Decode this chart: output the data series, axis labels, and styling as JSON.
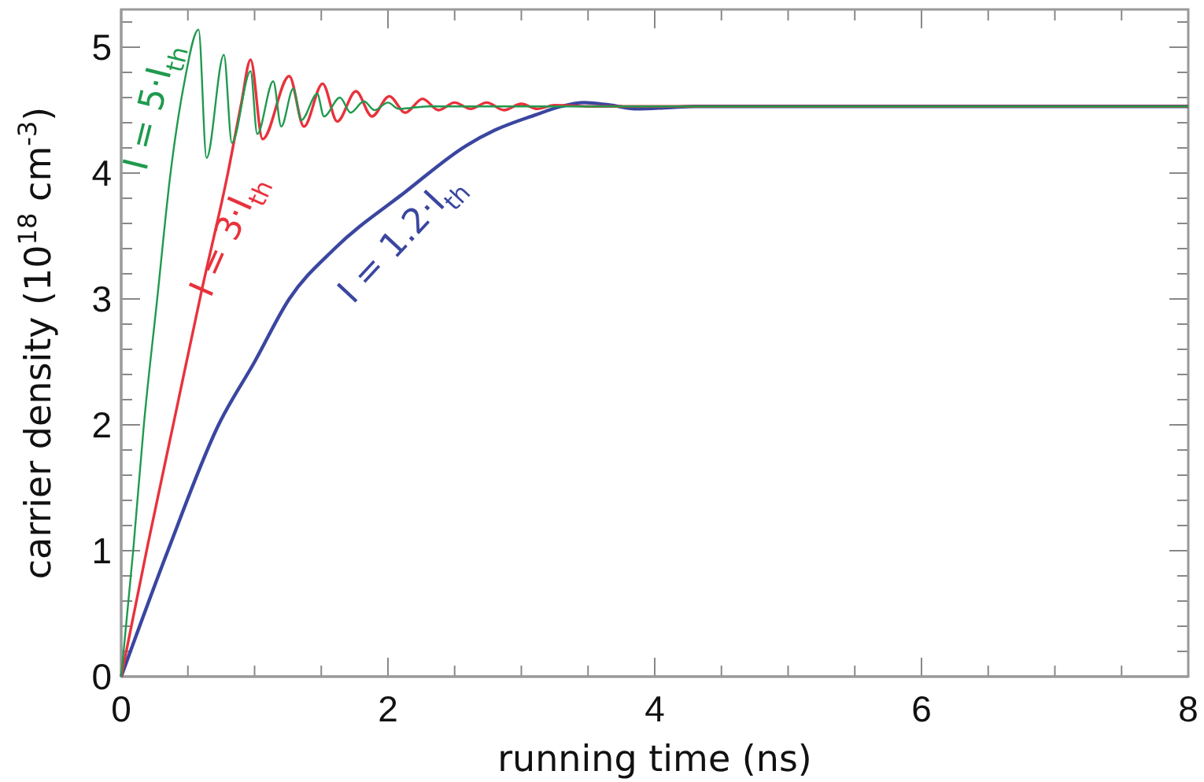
{
  "chart_data": {
    "type": "line",
    "xlabel": "running time (ns)",
    "ylabel": "carrier density (10$^{18}$ cm$^{-3}$)",
    "xlim": [
      0,
      8
    ],
    "ylim": [
      0,
      5.3
    ],
    "xticks": [
      0,
      {
        "value": 0.5,
        "label": null
      },
      {
        "value": 1,
        "label": null
      },
      {
        "value": 1.5,
        "label": null
      },
      2,
      {
        "value": 2.5,
        "label": null
      },
      {
        "value": 3,
        "label": null
      },
      {
        "value": 3.5,
        "label": null
      },
      4,
      {
        "value": 4.5,
        "label": null
      },
      {
        "value": 5,
        "label": null
      },
      {
        "value": 5.5,
        "label": null
      },
      6,
      {
        "value": 6.5,
        "label": null
      },
      {
        "value": 7,
        "label": null
      },
      {
        "value": 7.5,
        "label": null
      },
      8
    ],
    "yticks": [
      0,
      {
        "value": 0.2,
        "label": null
      },
      {
        "value": 0.4,
        "label": null
      },
      {
        "value": 0.6,
        "label": null
      },
      {
        "value": 0.8,
        "label": null
      },
      1,
      {
        "value": 1.2,
        "label": null
      },
      {
        "value": 1.4,
        "label": null
      },
      {
        "value": 1.6,
        "label": null
      },
      {
        "value": 1.8,
        "label": null
      },
      2,
      {
        "value": 2.2,
        "label": null
      },
      {
        "value": 2.4,
        "label": null
      },
      {
        "value": 2.6,
        "label": null
      },
      {
        "value": 2.8,
        "label": null
      },
      3,
      {
        "value": 3.2,
        "label": null
      },
      {
        "value": 3.4,
        "label": null
      },
      {
        "value": 3.6,
        "label": null
      },
      {
        "value": 3.8,
        "label": null
      },
      4,
      {
        "value": 4.2,
        "label": null
      },
      {
        "value": 4.4,
        "label": null
      },
      {
        "value": 4.6,
        "label": null
      },
      {
        "value": 4.8,
        "label": null
      },
      5,
      {
        "value": 5.2,
        "label": null
      }
    ],
    "grid": false,
    "marker": "none",
    "line_style": "solid",
    "series": [
      {
        "name": "I = 1.2·I$_{th}$",
        "color": "#3a46a0",
        "x": [
          0,
          0.35,
          0.73,
          1.0,
          1.26,
          1.6,
          2.13,
          2.59,
          2.8,
          3.1,
          3.3,
          3.47,
          3.67,
          3.87,
          4.1,
          4.3,
          8
        ],
        "values": [
          0,
          1,
          2,
          2.5,
          3,
          3.4,
          3.85,
          4.22,
          4.34,
          4.46,
          4.53,
          4.56,
          4.54,
          4.51,
          4.52,
          4.53,
          4.53
        ]
      },
      {
        "name": "I = 3·I$_{th}$",
        "color": "#e8323c",
        "x": [
          0,
          0.2,
          0.4,
          0.6,
          0.8,
          0.9,
          0.97,
          1.06,
          1.26,
          1.37,
          1.51,
          1.62,
          1.76,
          1.88,
          2.01,
          2.13,
          2.26,
          2.38,
          2.5,
          2.62,
          2.74,
          2.87,
          3.0,
          3.12,
          3.25,
          3.5,
          8
        ],
        "values": [
          0,
          1.05,
          2.05,
          3.05,
          4.0,
          4.55,
          4.9,
          4.27,
          4.77,
          4.37,
          4.71,
          4.41,
          4.65,
          4.45,
          4.61,
          4.48,
          4.59,
          4.5,
          4.56,
          4.51,
          4.56,
          4.5,
          4.55,
          4.51,
          4.54,
          4.53,
          4.53
        ]
      },
      {
        "name": "I = 5·I$_{th}$",
        "color": "#1f9a4e",
        "x": [
          0,
          0.09,
          0.17,
          0.27,
          0.37,
          0.47,
          0.58,
          0.64,
          0.77,
          0.83,
          0.97,
          1.02,
          1.14,
          1.2,
          1.29,
          1.35,
          1.47,
          1.52,
          1.64,
          1.72,
          1.82,
          1.9,
          2.0,
          2.08,
          2.3,
          8
        ],
        "values": [
          0,
          1,
          2,
          3,
          4,
          4.7,
          5.14,
          4.12,
          4.94,
          4.24,
          4.81,
          4.31,
          4.73,
          4.37,
          4.67,
          4.42,
          4.63,
          4.45,
          4.6,
          4.48,
          4.57,
          4.5,
          4.56,
          4.51,
          4.53,
          4.53
        ]
      }
    ]
  }
}
